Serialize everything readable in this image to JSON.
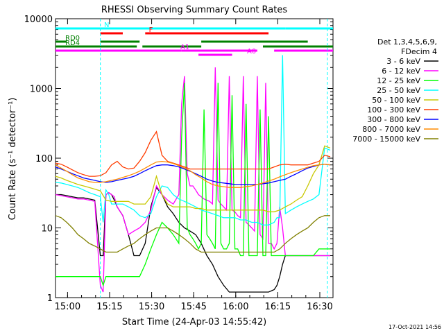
{
  "chart_data": {
    "type": "line",
    "title": "RHESSI Observing Summary Count Rates",
    "xlabel": "Start Time (24-Apr-03 14:55:42)",
    "ylabel": "Count Rate (s⁻¹ detector⁻¹)",
    "x_unit": "minutes after 14:55:42",
    "xlim": [
      0,
      99
    ],
    "ylim": [
      1,
      10000
    ],
    "yscale": "log",
    "x_ticks": [
      {
        "x": 4.3,
        "label": "15:00"
      },
      {
        "x": 19.3,
        "label": "15:15"
      },
      {
        "x": 34.3,
        "label": "15:30"
      },
      {
        "x": 49.3,
        "label": "15:45"
      },
      {
        "x": 64.3,
        "label": "16:00"
      },
      {
        "x": 79.3,
        "label": "16:15"
      },
      {
        "x": 94.3,
        "label": "16:30"
      }
    ],
    "y_ticks": [
      {
        "y": 1,
        "label": "1"
      },
      {
        "y": 10,
        "label": "10"
      },
      {
        "y": 100,
        "label": "100"
      },
      {
        "y": 1000,
        "label": "1000"
      },
      {
        "y": 10000,
        "label": "10000"
      }
    ],
    "legend_header": [
      "Det 1,3,4,5,6,9,",
      "FDecim 4"
    ],
    "legend_position": "right",
    "series": [
      {
        "name": "3 - 6 keV",
        "color": "#000000",
        "x": [
          0,
          2,
          4,
          6,
          8,
          10,
          12,
          14,
          16,
          17,
          18,
          19,
          20,
          21,
          22,
          24,
          26,
          28,
          30,
          32,
          34,
          36,
          38,
          40,
          42,
          44,
          46,
          48,
          50,
          52,
          54,
          56,
          58,
          60,
          62,
          64,
          66,
          68,
          70,
          72,
          74,
          76,
          78,
          79,
          80,
          81,
          82,
          84,
          86,
          88,
          90,
          92,
          94,
          96,
          98
        ],
        "y": [
          30,
          30,
          29,
          28,
          27,
          27,
          26,
          25,
          4,
          4,
          30,
          32,
          30,
          25,
          20,
          15,
          8,
          4,
          4,
          6,
          20,
          38,
          30,
          20,
          16,
          12,
          10,
          9,
          8,
          6,
          4,
          3,
          2,
          1.5,
          1.2,
          1.2,
          1.2,
          1.2,
          1.2,
          1.2,
          1.2,
          1.2,
          1.3,
          1.5,
          2,
          3,
          4,
          4,
          4,
          4,
          4,
          4,
          4,
          4,
          4
        ]
      },
      {
        "name": "6 - 12 keV",
        "color": "#ff00ff",
        "x": [
          0,
          2,
          4,
          6,
          8,
          10,
          12,
          14,
          16,
          17,
          18,
          19,
          20,
          21,
          22,
          24,
          26,
          28,
          30,
          32,
          34,
          36,
          38,
          40,
          42,
          44,
          45,
          46,
          47,
          48,
          49,
          50,
          51,
          52,
          53,
          54,
          55,
          56,
          57,
          58,
          59,
          60,
          61,
          62,
          63,
          64,
          65,
          66,
          67,
          68,
          69,
          70,
          71,
          72,
          73,
          74,
          75,
          76,
          77,
          78,
          79,
          80,
          81,
          82,
          84,
          86,
          88,
          90,
          92,
          94,
          96,
          98
        ],
        "y": [
          30,
          29,
          28,
          27,
          26,
          26,
          25,
          24,
          1.5,
          1.2,
          30,
          32,
          30,
          28,
          20,
          15,
          8,
          9,
          10,
          12,
          18,
          40,
          30,
          25,
          22,
          30,
          600,
          1500,
          60,
          40,
          40,
          35,
          30,
          28,
          26,
          25,
          24,
          22,
          2000,
          25,
          22,
          20,
          18,
          1500,
          18,
          17,
          15,
          14,
          1500,
          12,
          11,
          10,
          9,
          1500,
          8,
          7,
          1200,
          6,
          6,
          5,
          6,
          20,
          10,
          4,
          4,
          4,
          4,
          4,
          4,
          4,
          4,
          4
        ]
      },
      {
        "name": "12 - 25 keV",
        "color": "#00ff00",
        "x": [
          0,
          2,
          4,
          6,
          8,
          10,
          12,
          14,
          16,
          17,
          18,
          19,
          20,
          22,
          24,
          26,
          28,
          30,
          32,
          34,
          36,
          38,
          40,
          42,
          44,
          45,
          46,
          47,
          48,
          49,
          50,
          51,
          52,
          53,
          54,
          55,
          56,
          57,
          58,
          59,
          60,
          61,
          62,
          63,
          64,
          65,
          66,
          67,
          68,
          69,
          70,
          71,
          72,
          73,
          74,
          75,
          76,
          77,
          78,
          79,
          80,
          81,
          82,
          84,
          86,
          88,
          90,
          92,
          94,
          96,
          98
        ],
        "y": [
          2,
          2,
          2,
          2,
          2,
          2,
          2,
          2,
          2,
          1.5,
          2,
          2,
          2,
          2,
          2,
          2,
          2,
          2,
          3,
          5,
          8,
          12,
          10,
          8,
          6,
          200,
          1200,
          10,
          8,
          7,
          6,
          5,
          6,
          500,
          8,
          7,
          6,
          5,
          1200,
          6,
          5,
          5,
          6,
          800,
          5,
          5,
          4,
          4,
          600,
          4,
          4,
          4,
          4,
          500,
          4,
          4,
          400,
          4,
          4,
          4,
          4,
          4,
          4,
          4,
          4,
          4,
          4,
          4,
          5,
          5,
          5
        ]
      },
      {
        "name": "25 - 50 keV",
        "color": "#00ffff",
        "x": [
          0,
          2,
          4,
          6,
          8,
          10,
          12,
          14,
          16,
          17,
          18,
          19,
          20,
          22,
          24,
          26,
          28,
          30,
          32,
          34,
          36,
          38,
          40,
          42,
          44,
          46,
          48,
          50,
          52,
          54,
          56,
          58,
          60,
          62,
          64,
          66,
          68,
          70,
          72,
          74,
          76,
          78,
          79,
          80,
          81,
          82,
          84,
          86,
          88,
          90,
          92,
          94,
          96,
          98
        ],
        "y": [
          45,
          44,
          42,
          40,
          38,
          35,
          32,
          30,
          28,
          12,
          35,
          30,
          22,
          22,
          22,
          20,
          18,
          15,
          14,
          16,
          28,
          40,
          38,
          30,
          26,
          24,
          22,
          20,
          18,
          17,
          16,
          15,
          14,
          14,
          14,
          13,
          13,
          12,
          12,
          11,
          11,
          12,
          14,
          14,
          3000,
          16,
          18,
          20,
          22,
          24,
          26,
          30,
          140,
          130
        ]
      },
      {
        "name": "50 - 100 keV",
        "color": "#c8c800",
        "x": [
          0,
          2,
          4,
          6,
          8,
          10,
          12,
          14,
          16,
          18,
          20,
          22,
          24,
          26,
          28,
          30,
          32,
          34,
          36,
          38,
          40,
          42,
          44,
          46,
          48,
          50,
          52,
          54,
          56,
          58,
          60,
          62,
          64,
          66,
          68,
          70,
          72,
          74,
          76,
          78,
          80,
          82,
          84,
          86,
          88,
          90,
          92,
          94,
          96,
          98
        ],
        "y": [
          55,
          52,
          48,
          45,
          42,
          40,
          38,
          36,
          34,
          25,
          24,
          24,
          24,
          24,
          22,
          22,
          22,
          28,
          55,
          30,
          22,
          20,
          20,
          20,
          20,
          19,
          19,
          18,
          18,
          18,
          18,
          18,
          18,
          18,
          18,
          18,
          18,
          18,
          17,
          17,
          18,
          20,
          22,
          25,
          28,
          40,
          60,
          80,
          150,
          140
        ]
      },
      {
        "name": "100 - 300 keV",
        "color": "#ff3c00",
        "x": [
          0,
          2,
          4,
          6,
          8,
          10,
          12,
          14,
          16,
          18,
          20,
          22,
          24,
          26,
          28,
          30,
          32,
          34,
          36,
          38,
          40,
          42,
          44,
          46,
          48,
          50,
          52,
          54,
          56,
          58,
          60,
          62,
          64,
          66,
          68,
          70,
          72,
          74,
          76,
          78,
          80,
          82,
          84,
          86,
          88,
          90,
          92,
          94,
          96,
          98
        ],
        "y": [
          85,
          82,
          75,
          68,
          62,
          58,
          55,
          55,
          56,
          62,
          80,
          90,
          75,
          70,
          72,
          90,
          120,
          180,
          240,
          110,
          90,
          85,
          80,
          75,
          70,
          70,
          70,
          70,
          70,
          70,
          70,
          70,
          70,
          70,
          70,
          70,
          70,
          70,
          70,
          75,
          80,
          82,
          80,
          80,
          80,
          80,
          85,
          90,
          110,
          105
        ]
      },
      {
        "name": "300 - 800 keV",
        "color": "#0000ff",
        "x": [
          0,
          2,
          4,
          6,
          8,
          10,
          12,
          14,
          16,
          18,
          20,
          22,
          24,
          26,
          28,
          30,
          32,
          34,
          36,
          38,
          40,
          42,
          44,
          46,
          48,
          50,
          52,
          54,
          56,
          58,
          60,
          62,
          64,
          66,
          68,
          70,
          72,
          74,
          76,
          78,
          80,
          82,
          84,
          86,
          88,
          90,
          92,
          94,
          96,
          98
        ],
        "y": [
          75,
          70,
          65,
          60,
          56,
          52,
          50,
          48,
          46,
          45,
          46,
          48,
          50,
          52,
          55,
          60,
          66,
          72,
          78,
          80,
          80,
          78,
          75,
          70,
          65,
          60,
          55,
          50,
          47,
          45,
          44,
          43,
          42,
          42,
          42,
          42,
          42,
          43,
          44,
          46,
          48,
          50,
          55,
          60,
          66,
          72,
          76,
          80,
          82,
          80
        ]
      },
      {
        "name": "800 - 7000 keV",
        "color": "#ff8c00",
        "x": [
          0,
          2,
          4,
          6,
          8,
          10,
          12,
          14,
          16,
          18,
          20,
          22,
          24,
          26,
          28,
          30,
          32,
          34,
          36,
          38,
          40,
          42,
          44,
          46,
          48,
          50,
          52,
          54,
          56,
          58,
          60,
          62,
          64,
          66,
          68,
          70,
          72,
          74,
          76,
          78,
          80,
          82,
          84,
          86,
          88,
          90,
          92,
          94,
          96,
          98
        ],
        "y": [
          80,
          72,
          65,
          58,
          52,
          49,
          46,
          45,
          45,
          46,
          48,
          50,
          53,
          56,
          60,
          65,
          72,
          80,
          88,
          90,
          88,
          84,
          78,
          72,
          66,
          58,
          52,
          46,
          42,
          40,
          39,
          38,
          38,
          38,
          39,
          40,
          42,
          44,
          47,
          50,
          54,
          58,
          62,
          66,
          70,
          74,
          78,
          80,
          82,
          80
        ]
      },
      {
        "name": "7000 - 15000 keV",
        "color": "#808000",
        "x": [
          0,
          2,
          4,
          6,
          8,
          10,
          12,
          14,
          16,
          18,
          20,
          22,
          24,
          26,
          28,
          30,
          32,
          34,
          36,
          38,
          40,
          42,
          44,
          46,
          48,
          50,
          52,
          54,
          56,
          58,
          60,
          62,
          64,
          66,
          68,
          70,
          72,
          74,
          76,
          78,
          80,
          82,
          84,
          86,
          88,
          90,
          92,
          94,
          96,
          98
        ],
        "y": [
          15,
          14,
          12,
          10,
          8,
          7,
          6,
          5.5,
          5,
          4.5,
          4.5,
          4.5,
          5,
          5.5,
          6,
          7,
          8,
          9,
          10,
          10,
          10,
          9,
          8,
          7,
          6,
          5,
          4.5,
          4.5,
          4.5,
          4.5,
          4.5,
          4.5,
          4.5,
          4.5,
          4.5,
          4.5,
          4.5,
          4.5,
          4.5,
          4.5,
          5,
          6,
          7,
          8,
          9,
          10,
          12,
          14,
          15,
          15
        ]
      }
    ],
    "annotations": [
      {
        "label": "N",
        "color": "#00ffff",
        "segments": [
          [
            0,
            16
          ],
          [
            16,
            82
          ],
          [
            82,
            99
          ]
        ],
        "level": "top"
      },
      {
        "label": "F",
        "color": "#ff0000",
        "segments": [
          [
            16,
            24
          ],
          [
            32,
            76
          ]
        ],
        "level": "second"
      },
      {
        "label": "RD0",
        "color": "#008000",
        "segments": [
          [
            0,
            4
          ],
          [
            16,
            30
          ],
          [
            52,
            90
          ]
        ],
        "level": "third"
      },
      {
        "label": "RD4",
        "color": "#008000",
        "segments": [
          [
            0,
            29
          ],
          [
            31,
            52
          ],
          [
            74,
            99
          ]
        ],
        "level": "fourth"
      },
      {
        "label": "A0",
        "color": "#ff00ff",
        "segments": [
          [
            51,
            63
          ]
        ],
        "level": "fifth"
      },
      {
        "label": "A1",
        "color": "#ff00ff",
        "segments": [
          [
            0,
            45
          ],
          [
            45,
            72
          ],
          [
            78,
            99
          ]
        ],
        "level": "sixth"
      }
    ],
    "dashed_vlines": [
      {
        "x": 16,
        "color": "#00ffff"
      },
      {
        "x": 97,
        "color": "#00ffff"
      }
    ],
    "footer_stamp": "17-Oct-2021 14:56"
  }
}
